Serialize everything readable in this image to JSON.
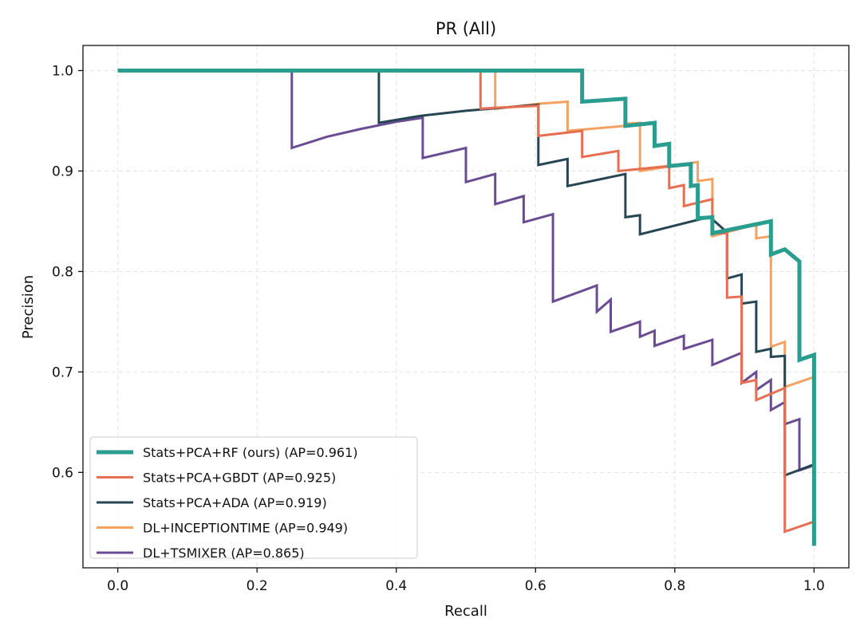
{
  "chart_data": {
    "type": "line",
    "title": "PR (All)",
    "xlabel": "Recall",
    "ylabel": "Precision",
    "xlim": [
      -0.05,
      1.05
    ],
    "ylim": [
      0.505,
      1.025
    ],
    "xticks": [
      0.0,
      0.2,
      0.4,
      0.6,
      0.8,
      1.0
    ],
    "xtick_labels": [
      "0.0",
      "0.2",
      "0.4",
      "0.6",
      "0.8",
      "1.0"
    ],
    "yticks": [
      0.6,
      0.7,
      0.8,
      0.9,
      1.0
    ],
    "ytick_labels": [
      "0.6",
      "0.7",
      "0.8",
      "0.9",
      "1.0"
    ],
    "grid": true,
    "legend_position": "lower-left",
    "series": [
      {
        "name": "Stats+PCA+RF (ours) (AP=0.961)",
        "color": "#2a9d8f",
        "width": 5,
        "points": [
          [
            0,
            1.0
          ],
          [
            0.667,
            1.0
          ],
          [
            0.667,
            0.969
          ],
          [
            0.729,
            0.972
          ],
          [
            0.729,
            0.945
          ],
          [
            0.771,
            0.948
          ],
          [
            0.771,
            0.925
          ],
          [
            0.792,
            0.927
          ],
          [
            0.792,
            0.905
          ],
          [
            0.823,
            0.907
          ],
          [
            0.823,
            0.885
          ],
          [
            0.833,
            0.886
          ],
          [
            0.833,
            0.853
          ],
          [
            0.854,
            0.854
          ],
          [
            0.854,
            0.838
          ],
          [
            0.938,
            0.85
          ],
          [
            0.938,
            0.817
          ],
          [
            0.958,
            0.822
          ],
          [
            0.979,
            0.81
          ],
          [
            0.979,
            0.712
          ],
          [
            1.0,
            0.717
          ],
          [
            1.0,
            0.527
          ]
        ]
      },
      {
        "name": "Stats+PCA+GBDT (AP=0.925)",
        "color": "#e76f51",
        "width": 3,
        "points": [
          [
            0,
            1.0
          ],
          [
            0.521,
            1.0
          ],
          [
            0.521,
            0.962
          ],
          [
            0.542,
            0.963
          ],
          [
            0.604,
            0.965
          ],
          [
            0.604,
            0.935
          ],
          [
            0.667,
            0.94
          ],
          [
            0.667,
            0.914
          ],
          [
            0.719,
            0.92
          ],
          [
            0.719,
            0.9
          ],
          [
            0.792,
            0.905
          ],
          [
            0.792,
            0.883
          ],
          [
            0.813,
            0.886
          ],
          [
            0.813,
            0.865
          ],
          [
            0.854,
            0.872
          ],
          [
            0.854,
            0.838
          ],
          [
            0.875,
            0.838
          ],
          [
            0.875,
            0.774
          ],
          [
            0.896,
            0.775
          ],
          [
            0.896,
            0.689
          ],
          [
            0.917,
            0.692
          ],
          [
            0.917,
            0.672
          ],
          [
            0.958,
            0.684
          ],
          [
            0.958,
            0.541
          ],
          [
            1.0,
            0.551
          ]
        ]
      },
      {
        "name": "Stats+PCA+ADA (AP=0.919)",
        "color": "#264653",
        "width": 3,
        "points": [
          [
            0,
            1.0
          ],
          [
            0.375,
            1.0
          ],
          [
            0.375,
            0.948
          ],
          [
            0.435,
            0.955
          ],
          [
            0.5,
            0.96
          ],
          [
            0.604,
            0.966
          ],
          [
            0.604,
            0.906
          ],
          [
            0.646,
            0.912
          ],
          [
            0.646,
            0.885
          ],
          [
            0.729,
            0.897
          ],
          [
            0.729,
            0.854
          ],
          [
            0.75,
            0.856
          ],
          [
            0.75,
            0.837
          ],
          [
            0.854,
            0.855
          ],
          [
            0.854,
            0.852
          ],
          [
            0.875,
            0.839
          ],
          [
            0.875,
            0.793
          ],
          [
            0.896,
            0.797
          ],
          [
            0.896,
            0.768
          ],
          [
            0.917,
            0.77
          ],
          [
            0.917,
            0.72
          ],
          [
            0.938,
            0.723
          ],
          [
            0.938,
            0.715
          ],
          [
            0.958,
            0.716
          ],
          [
            0.958,
            0.597
          ],
          [
            1.0,
            0.608
          ],
          [
            1.0,
            0.527
          ]
        ]
      },
      {
        "name": "DL+INCEPTIONTIME (AP=0.949)",
        "color": "#f4a261",
        "width": 3,
        "points": [
          [
            0,
            1.0
          ],
          [
            0.542,
            1.0
          ],
          [
            0.542,
            0.962
          ],
          [
            0.604,
            0.967
          ],
          [
            0.646,
            0.969
          ],
          [
            0.646,
            0.94
          ],
          [
            0.729,
            0.945
          ],
          [
            0.729,
            0.947
          ],
          [
            0.75,
            0.948
          ],
          [
            0.75,
            0.9
          ],
          [
            0.833,
            0.909
          ],
          [
            0.833,
            0.89
          ],
          [
            0.854,
            0.892
          ],
          [
            0.854,
            0.835
          ],
          [
            0.917,
            0.847
          ],
          [
            0.917,
            0.833
          ],
          [
            0.938,
            0.835
          ],
          [
            0.938,
            0.725
          ],
          [
            0.958,
            0.73
          ],
          [
            0.958,
            0.685
          ],
          [
            1.0,
            0.695
          ],
          [
            1.0,
            0.61
          ]
        ]
      },
      {
        "name": "DL+TSMIXER (AP=0.865)",
        "color": "#6a4c93",
        "width": 3,
        "points": [
          [
            0,
            1.0
          ],
          [
            0.25,
            1.0
          ],
          [
            0.25,
            0.923
          ],
          [
            0.3,
            0.934
          ],
          [
            0.35,
            0.942
          ],
          [
            0.4,
            0.949
          ],
          [
            0.438,
            0.953
          ],
          [
            0.438,
            0.913
          ],
          [
            0.5,
            0.923
          ],
          [
            0.5,
            0.889
          ],
          [
            0.542,
            0.897
          ],
          [
            0.542,
            0.867
          ],
          [
            0.583,
            0.875
          ],
          [
            0.583,
            0.849
          ],
          [
            0.625,
            0.857
          ],
          [
            0.625,
            0.77
          ],
          [
            0.688,
            0.786
          ],
          [
            0.688,
            0.76
          ],
          [
            0.708,
            0.772
          ],
          [
            0.708,
            0.74
          ],
          [
            0.75,
            0.75
          ],
          [
            0.75,
            0.735
          ],
          [
            0.771,
            0.741
          ],
          [
            0.771,
            0.726
          ],
          [
            0.813,
            0.736
          ],
          [
            0.813,
            0.723
          ],
          [
            0.854,
            0.732
          ],
          [
            0.854,
            0.707
          ],
          [
            0.896,
            0.719
          ],
          [
            0.896,
            0.689
          ],
          [
            0.917,
            0.7
          ],
          [
            0.917,
            0.682
          ],
          [
            0.938,
            0.692
          ],
          [
            0.938,
            0.662
          ],
          [
            0.958,
            0.67
          ],
          [
            0.958,
            0.648
          ],
          [
            0.979,
            0.653
          ],
          [
            0.979,
            0.602
          ],
          [
            1.0,
            0.607
          ],
          [
            1.0,
            0.527
          ]
        ]
      }
    ]
  }
}
